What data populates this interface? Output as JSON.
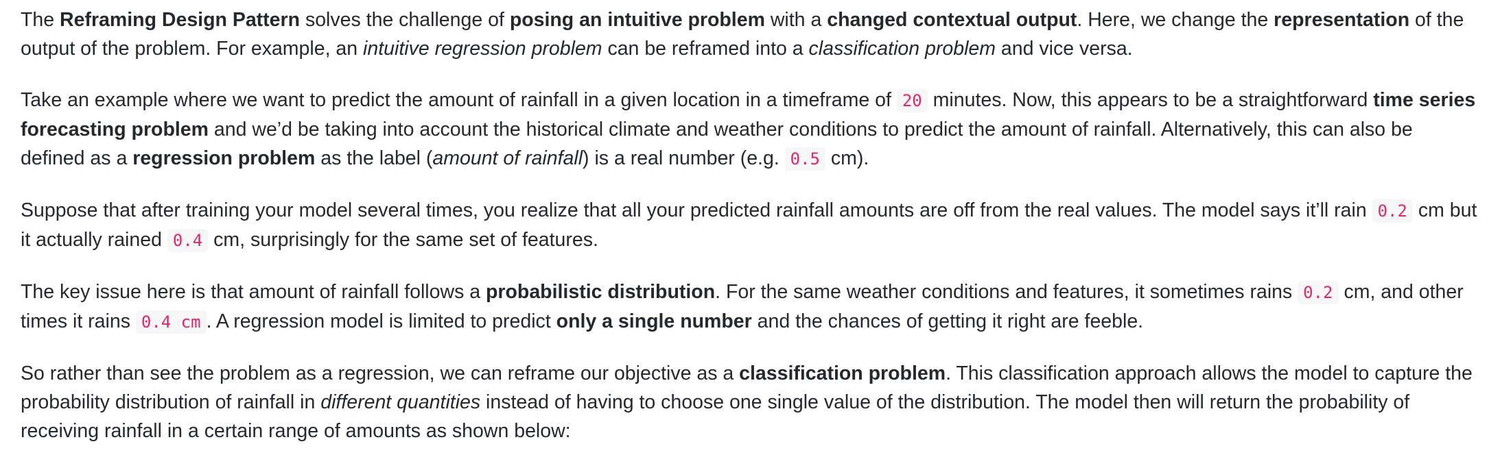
{
  "article": {
    "paragraphs": [
      [
        {
          "t": "The "
        },
        {
          "t": "Reframing Design Pattern",
          "s": "b"
        },
        {
          "t": " solves the challenge of "
        },
        {
          "t": "posing an intuitive problem",
          "s": "b"
        },
        {
          "t": " with a "
        },
        {
          "t": "changed contextual output",
          "s": "b"
        },
        {
          "t": ". Here, we change the "
        },
        {
          "t": "representation",
          "s": "b"
        },
        {
          "t": " of the output of the problem. For example, an "
        },
        {
          "t": "intuitive regression problem",
          "s": "i"
        },
        {
          "t": " can be reframed into a "
        },
        {
          "t": "classification problem",
          "s": "i"
        },
        {
          "t": " and vice versa."
        }
      ],
      [
        {
          "t": "Take an example where we want to predict the amount of rainfall in a given location in a timeframe of "
        },
        {
          "t": "20",
          "s": "code"
        },
        {
          "t": " minutes. Now, this appears to be a straightforward "
        },
        {
          "t": "time series forecasting problem",
          "s": "b"
        },
        {
          "t": " and we’d be taking into account the historical climate and weather conditions to predict the amount of rainfall. Alternatively, this can also be defined as a "
        },
        {
          "t": "regression problem",
          "s": "b"
        },
        {
          "t": " as the label ("
        },
        {
          "t": "amount of rainfall",
          "s": "i"
        },
        {
          "t": ") is a real number (e.g. "
        },
        {
          "t": "0.5",
          "s": "code"
        },
        {
          "t": " cm)."
        }
      ],
      [
        {
          "t": "Suppose that after training your model several times, you realize that all your predicted rainfall amounts are off from the real values. The model says it’ll rain "
        },
        {
          "t": "0.2",
          "s": "code"
        },
        {
          "t": " cm but it actually rained "
        },
        {
          "t": "0.4",
          "s": "code"
        },
        {
          "t": " cm, surprisingly for the same set of features."
        }
      ],
      [
        {
          "t": "The key issue here is that amount of rainfall follows a "
        },
        {
          "t": "probabilistic distribution",
          "s": "b"
        },
        {
          "t": ". For the same weather conditions and features, it sometimes rains "
        },
        {
          "t": "0.2",
          "s": "code"
        },
        {
          "t": " cm, and other times it rains "
        },
        {
          "t": "0.4 cm",
          "s": "code"
        },
        {
          "t": ". A regression model is limited to predict "
        },
        {
          "t": "only a single number",
          "s": "b"
        },
        {
          "t": " and the chances of getting it right are feeble."
        }
      ],
      [
        {
          "t": "So rather than see the problem as a regression, we can reframe our objective as a "
        },
        {
          "t": "classification problem",
          "s": "b"
        },
        {
          "t": ". This classification approach allows the model to capture the probability distribution of rainfall in "
        },
        {
          "t": "different quantities",
          "s": "i"
        },
        {
          "t": " instead of having to choose one single value of the distribution. The model then will return the probability of receiving rainfall in a certain range of amounts as shown below:"
        }
      ]
    ]
  },
  "colors": {
    "text": "#24292e",
    "code_text": "#e0256b",
    "code_background": "#f6f6f6"
  }
}
